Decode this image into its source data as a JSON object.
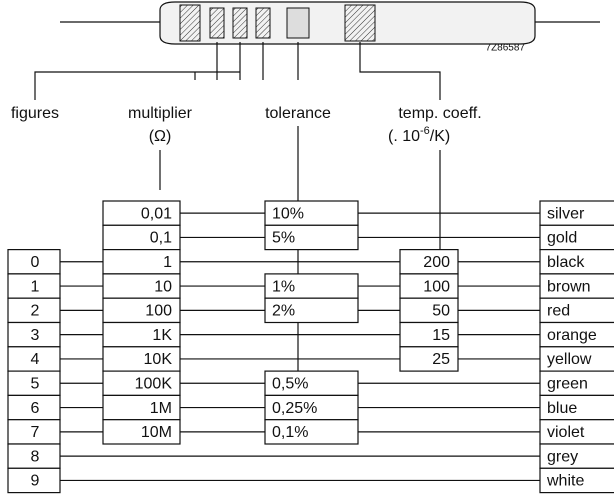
{
  "headers": {
    "figures": "figures",
    "multiplier": "multiplier",
    "multiplier_unit": "(Ω)",
    "tolerance": "tolerance",
    "temp_coeff": "temp. coeff.",
    "temp_unit_base": "(. 10",
    "temp_unit_exp": "-6",
    "temp_unit_rest": "/K)"
  },
  "code": "7Z86587",
  "rows": [
    {
      "color": "silver",
      "multiplier": "0,01",
      "tolerance": "10%"
    },
    {
      "color": "gold",
      "multiplier": "0,1",
      "tolerance": "5%"
    },
    {
      "color": "black",
      "figure": "0",
      "multiplier": "1",
      "temp_coeff": "200"
    },
    {
      "color": "brown",
      "figure": "1",
      "multiplier": "10",
      "tolerance": "1%",
      "temp_coeff": "100"
    },
    {
      "color": "red",
      "figure": "2",
      "multiplier": "100",
      "tolerance": "2%",
      "temp_coeff": "50"
    },
    {
      "color": "orange",
      "figure": "3",
      "multiplier": "1K",
      "temp_coeff": "15"
    },
    {
      "color": "yellow",
      "figure": "4",
      "multiplier": "10K",
      "temp_coeff": "25"
    },
    {
      "color": "green",
      "figure": "5",
      "multiplier": "100K",
      "tolerance": "0,5%"
    },
    {
      "color": "blue",
      "figure": "6",
      "multiplier": "1M",
      "tolerance": "0,25%"
    },
    {
      "color": "violet",
      "figure": "7",
      "multiplier": "10M",
      "tolerance": "0,1%"
    },
    {
      "color": "grey",
      "figure": "8"
    },
    {
      "color": "white",
      "figure": "9"
    }
  ]
}
